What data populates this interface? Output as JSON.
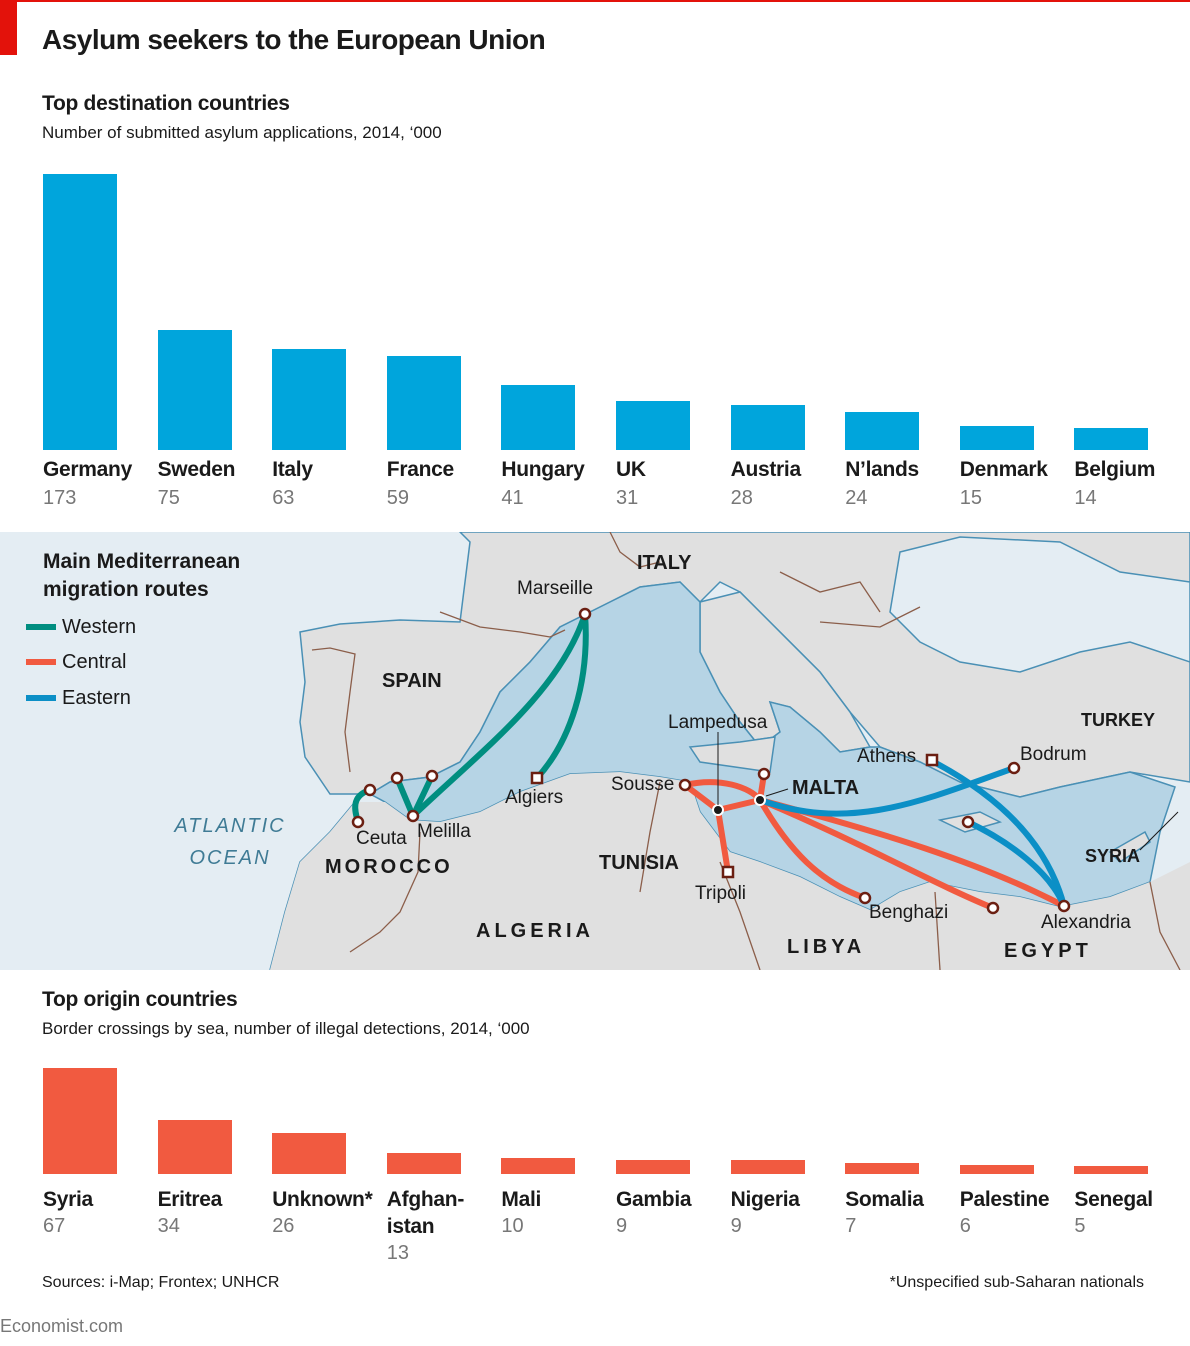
{
  "header": {
    "title": "Asylum seekers to the European Union",
    "accent_color": "#e3120b"
  },
  "destinations": {
    "title": "Top destination countries",
    "subtitle": "Number of submitted asylum applications, 2014, ‘000",
    "bar_color": "#00a5dc",
    "items": [
      {
        "label": "Germany",
        "value": "173"
      },
      {
        "label": "Sweden",
        "value": "75"
      },
      {
        "label": "Italy",
        "value": "63"
      },
      {
        "label": "France",
        "value": "59"
      },
      {
        "label": "Hungary",
        "value": "41"
      },
      {
        "label": "UK",
        "value": "31"
      },
      {
        "label": "Austria",
        "value": "28"
      },
      {
        "label": "N’lands",
        "value": "24"
      },
      {
        "label": "Denmark",
        "value": "15"
      },
      {
        "label": "Belgium",
        "value": "14"
      }
    ]
  },
  "map": {
    "title_line1": "Main Mediterranean",
    "title_line2": "migration routes",
    "legend": [
      {
        "label": "Western",
        "color": "#008e80"
      },
      {
        "label": "Central",
        "color": "#f15a40"
      },
      {
        "label": "Eastern",
        "color": "#0b8fc6"
      }
    ],
    "countries": {
      "italy": "ITALY",
      "spain": "SPAIN",
      "turkey": "TURKEY",
      "morocco": "MOROCCO",
      "tunisia": "TUNISIA",
      "algeria": "ALGERIA",
      "libya": "LIBYA",
      "egypt": "EGYPT",
      "syria": "SYRIA",
      "malta": "MALTA"
    },
    "ocean_line1": "ATLANTIC",
    "ocean_line2": "OCEAN",
    "cities": {
      "marseille": "Marseille",
      "lampedusa": "Lampedusa",
      "athens": "Athens",
      "bodrum": "Bodrum",
      "sousse": "Sousse",
      "algiers": "Algiers",
      "ceuta": "Ceuta",
      "melilla": "Melilla",
      "tripoli": "Tripoli",
      "benghazi": "Benghazi",
      "alexandria": "Alexandria"
    }
  },
  "origins": {
    "title": "Top origin countries",
    "subtitle": "Border crossings by sea, number of illegal detections, 2014, ‘000",
    "bar_color": "#f15a40",
    "items": [
      {
        "label": "Syria",
        "value": "67"
      },
      {
        "label": "Eritrea",
        "value": "34"
      },
      {
        "label": "Unknown*",
        "value": "26"
      },
      {
        "label": "Afghan-\nistan",
        "value": "13"
      },
      {
        "label": "Mali",
        "value": "10"
      },
      {
        "label": "Gambia",
        "value": "9"
      },
      {
        "label": "Nigeria",
        "value": "9"
      },
      {
        "label": "Somalia",
        "value": "7"
      },
      {
        "label": "Palestine",
        "value": "6"
      },
      {
        "label": "Senegal",
        "value": "5"
      }
    ]
  },
  "footer": {
    "sources": "Sources: i-Map; Frontex; UNHCR",
    "footnote": "*Unspecified sub-Saharan nationals",
    "brand": "Economist.com"
  },
  "chart_data": [
    {
      "type": "bar",
      "title": "Top destination countries",
      "subtitle": "Number of submitted asylum applications, 2014, '000",
      "categories": [
        "Germany",
        "Sweden",
        "Italy",
        "France",
        "Hungary",
        "UK",
        "Austria",
        "N'lands",
        "Denmark",
        "Belgium"
      ],
      "values": [
        173,
        75,
        63,
        59,
        41,
        31,
        28,
        24,
        15,
        14
      ],
      "xlabel": "",
      "ylabel": "'000",
      "ylim": [
        0,
        173
      ],
      "grid": false,
      "legend": "none",
      "color": "#00a5dc"
    },
    {
      "type": "bar",
      "title": "Top origin countries",
      "subtitle": "Border crossings by sea, number of illegal detections, 2014, '000",
      "categories": [
        "Syria",
        "Eritrea",
        "Unknown*",
        "Afghanistan",
        "Mali",
        "Gambia",
        "Nigeria",
        "Somalia",
        "Palestine",
        "Senegal"
      ],
      "values": [
        67,
        34,
        26,
        13,
        10,
        9,
        9,
        7,
        6,
        5
      ],
      "xlabel": "",
      "ylabel": "'000",
      "ylim": [
        0,
        67
      ],
      "grid": false,
      "legend": "none",
      "color": "#f15a40",
      "annotations": [
        "*Unspecified sub-Saharan nationals"
      ]
    }
  ]
}
